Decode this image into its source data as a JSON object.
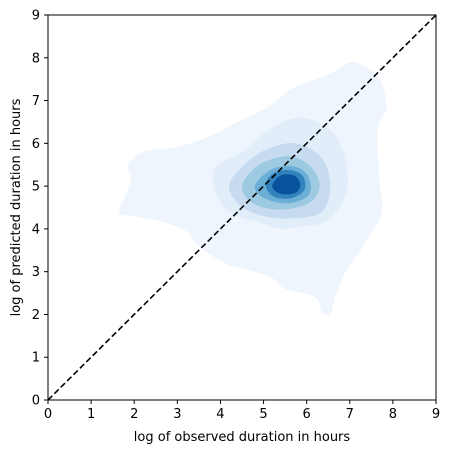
{
  "chart_data": {
    "type": "kde-density",
    "title": "",
    "xlabel": "log of observed duration in hours",
    "ylabel": "log of predicted duration in hours",
    "xlim": [
      0,
      9
    ],
    "ylim": [
      0,
      9
    ],
    "xticks": [
      "0",
      "1",
      "2",
      "3",
      "4",
      "5",
      "6",
      "7",
      "8",
      "9"
    ],
    "yticks": [
      "0",
      "1",
      "2",
      "3",
      "4",
      "5",
      "6",
      "7",
      "8",
      "9"
    ],
    "grid": false,
    "legend": false,
    "colormap": "Blues",
    "density_peak": {
      "x": 5.55,
      "y": 5.05
    },
    "reference_line": {
      "style": "dashed",
      "color": "#000000",
      "from": [
        0,
        0
      ],
      "to": [
        9,
        9
      ]
    },
    "contour_levels": [
      {
        "level": 1,
        "color": "#eef5fd",
        "points": [
          [
            1.9,
            5.3
          ],
          [
            1.9,
            5.0
          ],
          [
            1.65,
            4.4
          ],
          [
            2.0,
            4.3
          ],
          [
            2.7,
            4.15
          ],
          [
            3.2,
            3.95
          ],
          [
            3.5,
            3.6
          ],
          [
            4.1,
            3.2
          ],
          [
            4.8,
            3.0
          ],
          [
            5.2,
            2.85
          ],
          [
            5.5,
            2.6
          ],
          [
            6.2,
            2.4
          ],
          [
            6.35,
            2.05
          ],
          [
            6.55,
            2.0
          ],
          [
            6.65,
            2.4
          ],
          [
            6.7,
            2.5
          ],
          [
            6.9,
            3.0
          ],
          [
            7.15,
            3.35
          ],
          [
            7.5,
            3.9
          ],
          [
            7.75,
            4.4
          ],
          [
            7.7,
            5.0
          ],
          [
            7.65,
            5.7
          ],
          [
            7.65,
            6.4
          ],
          [
            7.85,
            6.85
          ],
          [
            7.7,
            7.5
          ],
          [
            7.35,
            7.8
          ],
          [
            7.0,
            7.9
          ],
          [
            6.5,
            7.6
          ],
          [
            5.7,
            7.3
          ],
          [
            5.1,
            6.85
          ],
          [
            4.4,
            6.5
          ],
          [
            3.6,
            6.1
          ],
          [
            2.9,
            5.9
          ],
          [
            2.2,
            5.8
          ],
          [
            1.85,
            5.5
          ]
        ]
      },
      {
        "level": 2,
        "color": "#e1edf8",
        "points": [
          [
            3.85,
            5.0
          ],
          [
            4.05,
            4.55
          ],
          [
            4.4,
            4.3
          ],
          [
            4.9,
            4.15
          ],
          [
            5.4,
            4.0
          ],
          [
            5.8,
            4.05
          ],
          [
            6.4,
            4.15
          ],
          [
            6.75,
            4.5
          ],
          [
            6.95,
            5.0
          ],
          [
            6.85,
            5.8
          ],
          [
            6.5,
            6.35
          ],
          [
            5.8,
            6.6
          ],
          [
            5.1,
            6.3
          ],
          [
            4.5,
            5.8
          ],
          [
            3.9,
            5.45
          ]
        ]
      },
      {
        "level": 3,
        "color": "#c6dbef",
        "points": [
          [
            4.2,
            5.0
          ],
          [
            4.45,
            4.55
          ],
          [
            5.0,
            4.3
          ],
          [
            5.7,
            4.25
          ],
          [
            6.35,
            4.4
          ],
          [
            6.55,
            5.0
          ],
          [
            6.35,
            5.65
          ],
          [
            5.75,
            6.0
          ],
          [
            5.05,
            5.85
          ],
          [
            4.5,
            5.45
          ]
        ]
      },
      {
        "level": 4,
        "color": "#9ecae1",
        "points": [
          [
            4.5,
            5.0
          ],
          [
            4.75,
            4.6
          ],
          [
            5.35,
            4.45
          ],
          [
            6.05,
            4.6
          ],
          [
            6.3,
            5.0
          ],
          [
            6.1,
            5.45
          ],
          [
            5.6,
            5.7
          ],
          [
            4.9,
            5.5
          ]
        ]
      },
      {
        "level": 5,
        "color": "#6baed6",
        "points": [
          [
            4.8,
            5.0
          ],
          [
            5.05,
            4.7
          ],
          [
            5.6,
            4.6
          ],
          [
            6.05,
            4.8
          ],
          [
            6.05,
            5.2
          ],
          [
            5.75,
            5.45
          ],
          [
            5.2,
            5.4
          ]
        ]
      },
      {
        "level": 6,
        "color": "#3182bd",
        "points": [
          [
            5.05,
            5.0
          ],
          [
            5.25,
            4.75
          ],
          [
            5.65,
            4.72
          ],
          [
            5.95,
            4.92
          ],
          [
            5.9,
            5.25
          ],
          [
            5.55,
            5.38
          ],
          [
            5.2,
            5.28
          ]
        ]
      },
      {
        "level": 7,
        "color": "#08519c",
        "points": [
          [
            5.2,
            5.0
          ],
          [
            5.4,
            4.82
          ],
          [
            5.75,
            4.85
          ],
          [
            5.85,
            5.05
          ],
          [
            5.7,
            5.25
          ],
          [
            5.4,
            5.25
          ]
        ]
      }
    ]
  }
}
